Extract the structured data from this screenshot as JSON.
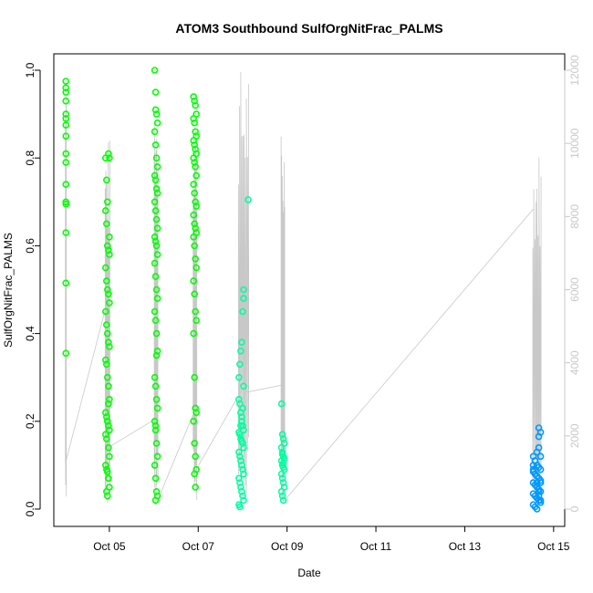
{
  "chart_data": {
    "type": "scatter",
    "title": "ATOM3 Southbound SulfOrgNitFrac_PALMS",
    "xlabel": "Date",
    "ylabel": "SulfOrgNitFrac_PALMS",
    "x_tick_labels": [
      "Oct 05",
      "Oct 07",
      "Oct 09",
      "Oct 11",
      "Oct 13",
      "Oct 15"
    ],
    "x_tick_dates": [
      "2017-10-05",
      "2017-10-07",
      "2017-10-09",
      "2017-10-11",
      "2017-10-13",
      "2017-10-15"
    ],
    "xlim": [
      "2017-10-03 18:00",
      "2017-10-15 06:00"
    ],
    "ylim": [
      0,
      1
    ],
    "y_ticks": [
      "0.0",
      "0.2",
      "0.4",
      "0.6",
      "0.8",
      "1.0"
    ],
    "y2_label": "",
    "y2_ticks": [
      "0",
      "2000",
      "4000",
      "6000",
      "8000",
      "10000",
      "12000"
    ],
    "y2lim": [
      0,
      12000
    ],
    "grid": false,
    "legend": "none",
    "colors": {
      "flight_oct04": "#00ff00",
      "flight_oct05": "#00ff00",
      "flight_oct06": "#00ff00",
      "flight_oct07": "#00ff00",
      "flight_oct08": "#00ffa0",
      "flight_oct09": "#00ffa0",
      "flight_oct14": "#0099ff",
      "altitude": "#c8c8c8"
    },
    "series": [
      {
        "color": "#00ff00",
        "x": [
          "2017-10-04 00:30",
          "2017-10-04 00:30",
          "2017-10-04 00:30",
          "2017-10-04 00:30",
          "2017-10-04 00:30",
          "2017-10-04 00:30",
          "2017-10-04 00:30",
          "2017-10-04 00:30",
          "2017-10-04 00:30",
          "2017-10-04 00:30",
          "2017-10-04 00:30",
          "2017-10-04 00:30",
          "2017-10-04 00:30",
          "2017-10-04 00:30",
          "2017-10-04 00:30",
          "2017-10-04 00:30"
        ],
        "y": [
          0.975,
          0.96,
          0.95,
          0.93,
          0.9,
          0.89,
          0.875,
          0.85,
          0.81,
          0.79,
          0.74,
          0.7,
          0.695,
          0.63,
          0.515,
          0.355
        ]
      },
      {
        "color": "#00ff00",
        "x": [
          "2017-10-04 22:00",
          "2017-10-04 22:30",
          "2017-10-04 23:00",
          "2017-10-04 23:30",
          "2017-10-05 00:00",
          "2017-10-04 22:00",
          "2017-10-04 22:30",
          "2017-10-04 23:00",
          "2017-10-04 23:30",
          "2017-10-05 00:00",
          "2017-10-04 22:00",
          "2017-10-04 22:30",
          "2017-10-04 23:00",
          "2017-10-04 23:30",
          "2017-10-05 00:00",
          "2017-10-04 22:00",
          "2017-10-04 22:30",
          "2017-10-04 23:00",
          "2017-10-04 23:30",
          "2017-10-05 00:00",
          "2017-10-04 22:00",
          "2017-10-04 22:30",
          "2017-10-04 23:00",
          "2017-10-04 23:30",
          "2017-10-05 00:00",
          "2017-10-04 22:00",
          "2017-10-04 22:30",
          "2017-10-04 23:00",
          "2017-10-04 23:30",
          "2017-10-05 00:00",
          "2017-10-04 22:00",
          "2017-10-04 22:30",
          "2017-10-04 23:00",
          "2017-10-04 23:30",
          "2017-10-05 00:00",
          "2017-10-04 22:00",
          "2017-10-04 22:30",
          "2017-10-04 23:00",
          "2017-10-04 23:30",
          "2017-10-05 00:00",
          "2017-10-04 22:30",
          "2017-10-04 23:00",
          "2017-10-04 23:30",
          "2017-10-05 00:00"
        ],
        "y": [
          0.8,
          0.75,
          0.7,
          0.81,
          0.8,
          0.68,
          0.65,
          0.6,
          0.59,
          0.58,
          0.55,
          0.52,
          0.5,
          0.49,
          0.47,
          0.45,
          0.42,
          0.4,
          0.38,
          0.37,
          0.34,
          0.33,
          0.3,
          0.28,
          0.25,
          0.22,
          0.21,
          0.2,
          0.19,
          0.18,
          0.17,
          0.16,
          0.2,
          0.14,
          0.12,
          0.1,
          0.09,
          0.085,
          0.07,
          0.05,
          0.04,
          0.03,
          0.24,
          0.62
        ]
      },
      {
        "color": "#00ff00",
        "x": [
          "2017-10-06 00:30",
          "2017-10-06 01:00",
          "2017-10-06 01:30",
          "2017-10-06 02:00",
          "2017-10-06 00:30",
          "2017-10-06 01:00",
          "2017-10-06 01:30",
          "2017-10-06 02:00",
          "2017-10-06 00:30",
          "2017-10-06 01:00",
          "2017-10-06 01:30",
          "2017-10-06 02:00",
          "2017-10-06 00:30",
          "2017-10-06 01:00",
          "2017-10-06 01:30",
          "2017-10-06 02:00",
          "2017-10-06 00:30",
          "2017-10-06 01:00",
          "2017-10-06 01:30",
          "2017-10-06 02:00",
          "2017-10-06 00:30",
          "2017-10-06 01:00",
          "2017-10-06 01:30",
          "2017-10-06 02:00",
          "2017-10-06 00:30",
          "2017-10-06 01:00",
          "2017-10-06 01:30",
          "2017-10-06 02:00",
          "2017-10-06 00:30",
          "2017-10-06 01:00",
          "2017-10-06 01:30",
          "2017-10-06 02:00",
          "2017-10-06 00:30",
          "2017-10-06 01:00",
          "2017-10-06 01:30",
          "2017-10-06 02:00",
          "2017-10-06 00:30",
          "2017-10-06 01:00",
          "2017-10-06 01:30",
          "2017-10-06 02:00",
          "2017-10-06 01:00",
          "2017-10-06 01:00",
          "2017-10-06 01:30",
          "2017-10-06 01:00"
        ],
        "y": [
          1.0,
          0.95,
          0.9,
          0.88,
          0.86,
          0.83,
          0.8,
          0.78,
          0.76,
          0.75,
          0.73,
          0.72,
          0.7,
          0.68,
          0.66,
          0.64,
          0.62,
          0.61,
          0.6,
          0.58,
          0.56,
          0.53,
          0.5,
          0.48,
          0.45,
          0.43,
          0.4,
          0.36,
          0.3,
          0.28,
          0.25,
          0.23,
          0.2,
          0.18,
          0.15,
          0.12,
          0.1,
          0.07,
          0.04,
          0.03,
          0.02,
          0.91,
          0.35,
          0.19
        ]
      },
      {
        "color": "#00ff00",
        "x": [
          "2017-10-06 21:30",
          "2017-10-06 22:00",
          "2017-10-06 22:30",
          "2017-10-06 23:00",
          "2017-10-06 21:30",
          "2017-10-06 22:00",
          "2017-10-06 22:30",
          "2017-10-06 23:00",
          "2017-10-06 21:30",
          "2017-10-06 22:00",
          "2017-10-06 22:30",
          "2017-10-06 23:00",
          "2017-10-06 21:30",
          "2017-10-06 22:00",
          "2017-10-06 22:30",
          "2017-10-06 23:00",
          "2017-10-06 21:30",
          "2017-10-06 22:00",
          "2017-10-06 22:30",
          "2017-10-06 23:00",
          "2017-10-06 21:30",
          "2017-10-06 22:00",
          "2017-10-06 22:30",
          "2017-10-06 23:00",
          "2017-10-06 21:30",
          "2017-10-06 22:00",
          "2017-10-06 22:30",
          "2017-10-06 23:00",
          "2017-10-06 21:30",
          "2017-10-06 22:00",
          "2017-10-06 22:30",
          "2017-10-06 23:00",
          "2017-10-06 21:30",
          "2017-10-06 22:00",
          "2017-10-06 22:30",
          "2017-10-06 23:00",
          "2017-10-06 21:30",
          "2017-10-06 22:00",
          "2017-10-06 22:30",
          "2017-10-06 23:00",
          "2017-10-06 22:00",
          "2017-10-06 22:30"
        ],
        "y": [
          0.94,
          0.93,
          0.92,
          0.9,
          0.89,
          0.88,
          0.86,
          0.85,
          0.84,
          0.83,
          0.82,
          0.81,
          0.8,
          0.79,
          0.78,
          0.76,
          0.74,
          0.72,
          0.7,
          0.69,
          0.67,
          0.65,
          0.64,
          0.63,
          0.62,
          0.6,
          0.57,
          0.55,
          0.52,
          0.49,
          0.45,
          0.43,
          0.4,
          0.3,
          0.23,
          0.22,
          0.2,
          0.15,
          0.12,
          0.09,
          0.08,
          0.05
        ]
      },
      {
        "color": "#00ffa0",
        "x": [
          "2017-10-07 22:00",
          "2017-10-07 22:30",
          "2017-10-07 23:00",
          "2017-10-07 23:30",
          "2017-10-08 00:00",
          "2017-10-08 00:30",
          "2017-10-07 22:00",
          "2017-10-07 22:30",
          "2017-10-07 23:00",
          "2017-10-07 23:30",
          "2017-10-08 00:00",
          "2017-10-08 00:30",
          "2017-10-07 22:00",
          "2017-10-07 22:30",
          "2017-10-07 23:00",
          "2017-10-07 23:30",
          "2017-10-08 00:00",
          "2017-10-08 00:30",
          "2017-10-07 22:00",
          "2017-10-07 22:30",
          "2017-10-07 23:00",
          "2017-10-07 23:30",
          "2017-10-08 00:00",
          "2017-10-08 00:30",
          "2017-10-07 22:00",
          "2017-10-07 22:30",
          "2017-10-07 23:00",
          "2017-10-07 23:30",
          "2017-10-08 00:00",
          "2017-10-08 00:30",
          "2017-10-07 22:00",
          "2017-10-07 22:30",
          "2017-10-07 23:00",
          "2017-10-07 23:30",
          "2017-10-08 00:00",
          "2017-10-08 00:30",
          "2017-10-08 03:00",
          "2017-10-08 00:30"
        ],
        "y": [
          0.25,
          0.24,
          0.22,
          0.2,
          0.19,
          0.18,
          0.175,
          0.17,
          0.16,
          0.155,
          0.15,
          0.14,
          0.13,
          0.12,
          0.11,
          0.1,
          0.09,
          0.08,
          0.07,
          0.06,
          0.05,
          0.04,
          0.03,
          0.02,
          0.01,
          0.005,
          0.19,
          0.21,
          0.23,
          0.28,
          0.3,
          0.33,
          0.36,
          0.38,
          0.45,
          0.5,
          0.705,
          0.48
        ]
      },
      {
        "color": "#00ffa0",
        "x": [
          "2017-10-08 21:00",
          "2017-10-08 21:30",
          "2017-10-08 22:00",
          "2017-10-08 22:30",
          "2017-10-08 21:00",
          "2017-10-08 21:30",
          "2017-10-08 22:00",
          "2017-10-08 22:30",
          "2017-10-08 21:00",
          "2017-10-08 21:30",
          "2017-10-08 22:00",
          "2017-10-08 22:30",
          "2017-10-08 21:00",
          "2017-10-08 21:30",
          "2017-10-08 22:00",
          "2017-10-08 22:30",
          "2017-10-08 21:00",
          "2017-10-08 21:30",
          "2017-10-08 22:00",
          "2017-10-08 22:30",
          "2017-10-08 21:30",
          "2017-10-08 22:00"
        ],
        "y": [
          0.24,
          0.17,
          0.16,
          0.15,
          0.14,
          0.13,
          0.12,
          0.115,
          0.11,
          0.1,
          0.095,
          0.09,
          0.08,
          0.07,
          0.06,
          0.05,
          0.04,
          0.03,
          0.02,
          0.15,
          0.125,
          0.105
        ]
      },
      {
        "color": "#0099ff",
        "x": [
          "2017-10-14 13:00",
          "2017-10-14 14:00",
          "2017-10-14 15:00",
          "2017-10-14 16:00",
          "2017-10-14 17:00",
          "2017-10-14 13:00",
          "2017-10-14 14:00",
          "2017-10-14 15:00",
          "2017-10-14 16:00",
          "2017-10-14 17:00",
          "2017-10-14 13:00",
          "2017-10-14 14:00",
          "2017-10-14 15:00",
          "2017-10-14 16:00",
          "2017-10-14 17:00",
          "2017-10-14 13:00",
          "2017-10-14 14:00",
          "2017-10-14 15:00",
          "2017-10-14 16:00",
          "2017-10-14 17:00",
          "2017-10-14 13:00",
          "2017-10-14 14:00",
          "2017-10-14 15:00",
          "2017-10-14 16:00",
          "2017-10-14 17:00",
          "2017-10-14 13:00",
          "2017-10-14 14:00",
          "2017-10-14 15:00",
          "2017-10-14 16:00",
          "2017-10-14 17:00",
          "2017-10-14 13:00",
          "2017-10-14 14:00",
          "2017-10-14 15:00",
          "2017-10-14 16:00",
          "2017-10-14 17:00",
          "2017-10-14 16:00",
          "2017-10-14 17:00",
          "2017-10-14 16:00"
        ],
        "y": [
          0.12,
          0.11,
          0.1,
          0.095,
          0.09,
          0.085,
          0.08,
          0.075,
          0.07,
          0.065,
          0.06,
          0.055,
          0.05,
          0.045,
          0.04,
          0.035,
          0.03,
          0.025,
          0.02,
          0.015,
          0.01,
          0.005,
          0.0,
          0.03,
          0.06,
          0.09,
          0.11,
          0.13,
          0.14,
          0.12,
          0.1,
          0.08,
          0.06,
          0.04,
          0.02,
          0.185,
          0.175,
          0.165
        ]
      }
    ],
    "altitude_envelope": {
      "units": "y2",
      "flights": [
        {
          "start": "2017-10-04 00:15",
          "end": "2017-10-04 00:45",
          "max": 12500,
          "min": 200
        },
        {
          "start": "2017-10-04 21:45",
          "end": "2017-10-05 00:15",
          "max": 10200,
          "min": 100
        },
        {
          "start": "2017-10-06 00:15",
          "end": "2017-10-06 02:15",
          "max": 11600,
          "min": 100
        },
        {
          "start": "2017-10-06 21:15",
          "end": "2017-10-06 23:15",
          "max": 11100,
          "min": 100
        },
        {
          "start": "2017-10-07 21:45",
          "end": "2017-10-08 03:15",
          "max": 12100,
          "min": 200
        },
        {
          "start": "2017-10-08 20:45",
          "end": "2017-10-08 22:45",
          "max": 10400,
          "min": 300
        },
        {
          "start": "2017-10-14 12:45",
          "end": "2017-10-14 17:15",
          "max": 9900,
          "min": 150
        }
      ],
      "connector": [
        [
          "2017-10-04 00:30",
          5600
        ],
        [
          "2017-10-04 00:30",
          1300
        ],
        [
          "2017-10-04 22:00",
          5500
        ],
        [
          "2017-10-05 00:00",
          1700
        ],
        [
          "2017-10-06 02:00",
          2500
        ],
        [
          "2017-10-06 01:00",
          100
        ],
        [
          "2017-10-06 23:00",
          2800
        ],
        [
          "2017-10-06 22:00",
          1000
        ],
        [
          "2017-10-08 00:00",
          3300
        ],
        [
          "2017-10-08 03:00",
          3200
        ],
        [
          "2017-10-08 22:00",
          3400
        ],
        [
          "2017-10-08 22:00",
          200
        ],
        [
          "2017-10-14 13:00",
          8200
        ]
      ]
    }
  }
}
